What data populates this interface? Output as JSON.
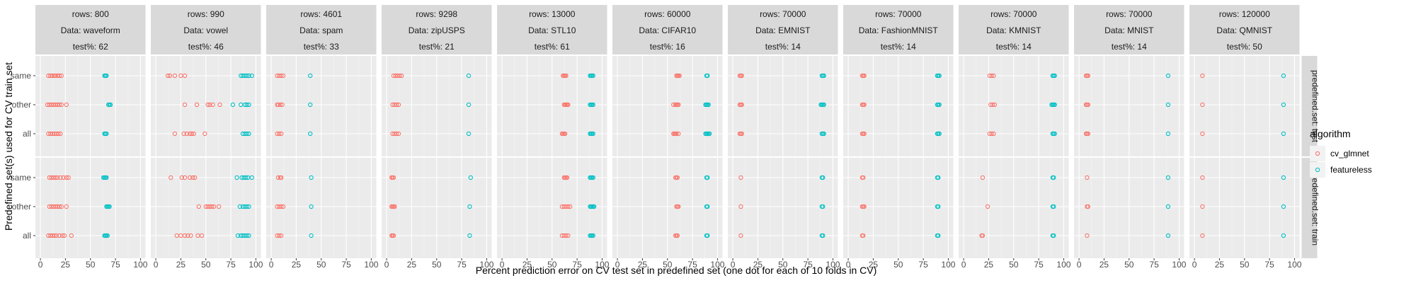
{
  "chart_data": {
    "type": "scatter",
    "title": "",
    "xlabel": "Percent prediction error on CV test set in predefined set (one dot for each of 10 folds in CV)",
    "ylabel": "Predefined set(s) used for CV train set",
    "xlim": [
      0,
      100
    ],
    "xticks": [
      0,
      25,
      50,
      75,
      100
    ],
    "xtick_labels": [
      "0",
      "25",
      "50",
      "75",
      "100"
    ],
    "y_categories": [
      "same",
      "other",
      "all"
    ],
    "grid": true,
    "legend": {
      "title": "algorithm",
      "position": "right",
      "entries": [
        {
          "name": "cv_glmnet",
          "color": "#F8766D"
        },
        {
          "name": "featureless",
          "color": "#00BFC4"
        }
      ]
    },
    "row_strips": [
      "predefined.set: test",
      "predefined.set: train"
    ],
    "panels": [
      {
        "rows": "rows: 800",
        "data": "Data: waveform",
        "test": "test%: 62",
        "points": {
          "test": {
            "same": {
              "cv_glmnet": [
                8,
                10,
                12,
                14,
                15,
                17,
                19,
                21
              ],
              "featureless": [
                64,
                65,
                66
              ]
            },
            "other": {
              "cv_glmnet": [
                7,
                9,
                11,
                13,
                15,
                17,
                19,
                21,
                26
              ],
              "featureless": [
                68,
                69,
                70
              ]
            },
            "all": {
              "cv_glmnet": [
                8,
                10,
                12,
                14,
                16,
                18,
                20
              ],
              "featureless": [
                64,
                65,
                66
              ]
            }
          },
          "train": {
            "same": {
              "cv_glmnet": [
                9,
                11,
                13,
                15,
                17,
                20,
                23,
                26,
                28
              ],
              "featureless": [
                63,
                64,
                65,
                66
              ]
            },
            "other": {
              "cv_glmnet": [
                9,
                11,
                13,
                15,
                17,
                19,
                21,
                26
              ],
              "featureless": [
                66,
                67,
                68,
                69
              ]
            },
            "all": {
              "cv_glmnet": [
                8,
                10,
                12,
                14,
                16,
                19,
                22,
                24,
                31
              ],
              "featureless": [
                64,
                65,
                66,
                67
              ]
            }
          }
        }
      },
      {
        "rows": "rows: 990",
        "data": "Data: vowel",
        "test": "test%: 46",
        "points": {
          "test": {
            "same": {
              "cv_glmnet": [
                12,
                14,
                19,
                25,
                29
              ],
              "featureless": [
                85,
                87,
                89,
                91,
                93,
                96
              ]
            },
            "other": {
              "cv_glmnet": [
                29,
                41,
                52,
                54,
                57,
                64
              ],
              "featureless": [
                77,
                85,
                89,
                91,
                93
              ]
            },
            "all": {
              "cv_glmnet": [
                19,
                28,
                31,
                34,
                36,
                38,
                49
              ],
              "featureless": [
                87,
                89,
                91,
                93
              ]
            }
          },
          "train": {
            "same": {
              "cv_glmnet": [
                15,
                26,
                29,
                34,
                37,
                39
              ],
              "featureless": [
                81,
                86,
                88,
                90,
                92,
                96
              ]
            },
            "other": {
              "cv_glmnet": [
                43,
                50,
                52,
                54,
                56,
                58,
                63
              ],
              "featureless": [
                84,
                87,
                89,
                91,
                93
              ]
            },
            "all": {
              "cv_glmnet": [
                21,
                25,
                29,
                32,
                35,
                42,
                46
              ],
              "featureless": [
                82,
                85,
                87,
                89,
                91,
                93
              ]
            }
          }
        }
      },
      {
        "rows": "rows: 4601",
        "data": "Data: spam",
        "test": "test%: 33",
        "points": {
          "test": {
            "same": {
              "cv_glmnet": [
                6,
                8,
                10,
                12
              ],
              "featureless": [
                39
              ]
            },
            "other": {
              "cv_glmnet": [
                6,
                7,
                9,
                11
              ],
              "featureless": [
                39
              ]
            },
            "all": {
              "cv_glmnet": [
                6,
                8,
                10
              ],
              "featureless": [
                39
              ]
            }
          },
          "train": {
            "same": {
              "cv_glmnet": [
                7,
                9,
                10
              ],
              "featureless": [
                40
              ]
            },
            "other": {
              "cv_glmnet": [
                6,
                8,
                10,
                12
              ],
              "featureless": [
                40
              ]
            },
            "all": {
              "cv_glmnet": [
                6,
                8,
                10
              ],
              "featureless": [
                40
              ]
            }
          }
        }
      },
      {
        "rows": "rows: 9298",
        "data": "Data: zipUSPS",
        "test": "test%: 21",
        "points": {
          "test": {
            "same": {
              "cv_glmnet": [
                7,
                9,
                11,
                13,
                15
              ],
              "featureless": [
                82
              ]
            },
            "other": {
              "cv_glmnet": [
                6,
                8,
                10,
                12
              ],
              "featureless": [
                82
              ]
            },
            "all": {
              "cv_glmnet": [
                6,
                8,
                10,
                12
              ],
              "featureless": [
                82
              ]
            }
          },
          "train": {
            "same": {
              "cv_glmnet": [
                5,
                6,
                7
              ],
              "featureless": [
                84
              ]
            },
            "other": {
              "cv_glmnet": [
                5,
                6,
                7,
                8
              ],
              "featureless": [
                83
              ]
            },
            "all": {
              "cv_glmnet": [
                5,
                6,
                7
              ],
              "featureless": [
                83
              ]
            }
          }
        }
      },
      {
        "rows": "rows: 13000",
        "data": "Data: STL10",
        "test": "test%: 61",
        "points": {
          "test": {
            "same": {
              "cv_glmnet": [
                61,
                62,
                63,
                64
              ],
              "featureless": [
                88,
                89,
                90,
                91
              ]
            },
            "other": {
              "cv_glmnet": [
                62,
                63,
                64,
                65,
                66
              ],
              "featureless": [
                88,
                89,
                90,
                91
              ]
            },
            "all": {
              "cv_glmnet": [
                60,
                61,
                62,
                63
              ],
              "featureless": [
                88,
                89,
                90,
                91
              ]
            }
          },
          "train": {
            "same": {
              "cv_glmnet": [
                62,
                63,
                64,
                65
              ],
              "featureless": [
                88,
                89,
                90,
                91
              ]
            },
            "other": {
              "cv_glmnet": [
                60,
                62,
                64,
                66,
                68
              ],
              "featureless": [
                88,
                89,
                90,
                91,
                92
              ]
            },
            "all": {
              "cv_glmnet": [
                60,
                62,
                64,
                66
              ],
              "featureless": [
                88,
                89,
                90,
                91
              ]
            }
          }
        }
      },
      {
        "rows": "rows: 60000",
        "data": "Data: CIFAR10",
        "test": "test%: 16",
        "points": {
          "test": {
            "same": {
              "cv_glmnet": [
                59,
                60,
                61,
                62
              ],
              "featureless": [
                89,
                90
              ]
            },
            "other": {
              "cv_glmnet": [
                56,
                58,
                59,
                60,
                61
              ],
              "featureless": [
                88,
                89,
                90,
                91
              ]
            },
            "all": {
              "cv_glmnet": [
                56,
                57,
                58,
                59,
                61
              ],
              "featureless": [
                88,
                89,
                90,
                91,
                92
              ]
            }
          },
          "train": {
            "same": {
              "cv_glmnet": [
                58,
                59,
                60
              ],
              "featureless": [
                89,
                90
              ]
            },
            "other": {
              "cv_glmnet": [
                59,
                60,
                61
              ],
              "featureless": [
                89,
                90
              ]
            },
            "all": {
              "cv_glmnet": [
                58,
                59,
                60
              ],
              "featureless": [
                89,
                90
              ]
            }
          }
        }
      },
      {
        "rows": "rows: 70000",
        "data": "Data: EMNIST",
        "test": "test%: 14",
        "points": {
          "test": {
            "same": {
              "cv_glmnet": [
                7,
                8,
                9
              ],
              "featureless": [
                89,
                90,
                91
              ]
            },
            "other": {
              "cv_glmnet": [
                7,
                8,
                9
              ],
              "featureless": [
                88,
                89,
                90,
                91
              ]
            },
            "all": {
              "cv_glmnet": [
                7,
                8,
                9
              ],
              "featureless": [
                89,
                90,
                91
              ]
            }
          },
          "train": {
            "same": {
              "cv_glmnet": [
                8
              ],
              "featureless": [
                89,
                90
              ]
            },
            "other": {
              "cv_glmnet": [
                8
              ],
              "featureless": [
                89,
                90
              ]
            },
            "all": {
              "cv_glmnet": [
                8
              ],
              "featureless": [
                89,
                90
              ]
            }
          }
        }
      },
      {
        "rows": "rows: 70000",
        "data": "Data: FashionMNIST",
        "test": "test%: 14",
        "points": {
          "test": {
            "same": {
              "cv_glmnet": [
                14,
                15,
                16
              ],
              "featureless": [
                89,
                90,
                91
              ]
            },
            "other": {
              "cv_glmnet": [
                14,
                15,
                16
              ],
              "featureless": [
                89,
                90,
                91
              ]
            },
            "all": {
              "cv_glmnet": [
                14,
                15,
                16
              ],
              "featureless": [
                89,
                90,
                91
              ]
            }
          },
          "train": {
            "same": {
              "cv_glmnet": [
                14,
                15
              ],
              "featureless": [
                89,
                90
              ]
            },
            "other": {
              "cv_glmnet": [
                14,
                15,
                16
              ],
              "featureless": [
                89,
                90
              ]
            },
            "all": {
              "cv_glmnet": [
                14,
                15
              ],
              "featureless": [
                89,
                90
              ]
            }
          }
        }
      },
      {
        "rows": "rows: 70000",
        "data": "Data: KMNIST",
        "test": "test%: 14",
        "points": {
          "test": {
            "same": {
              "cv_glmnet": [
                26,
                28,
                30
              ],
              "featureless": [
                89,
                90,
                91
              ]
            },
            "other": {
              "cv_glmnet": [
                27,
                29,
                31
              ],
              "featureless": [
                88,
                89,
                90,
                91
              ]
            },
            "all": {
              "cv_glmnet": [
                26,
                28,
                30
              ],
              "featureless": [
                89,
                90,
                91
              ]
            }
          },
          "train": {
            "same": {
              "cv_glmnet": [
                19
              ],
              "featureless": [
                89,
                90
              ]
            },
            "other": {
              "cv_glmnet": [
                24
              ],
              "featureless": [
                89,
                90
              ]
            },
            "all": {
              "cv_glmnet": [
                18,
                19
              ],
              "featureless": [
                89,
                90
              ]
            }
          }
        }
      },
      {
        "rows": "rows: 70000",
        "data": "Data: MNIST",
        "test": "test%: 14",
        "points": {
          "test": {
            "same": {
              "cv_glmnet": [
                7,
                8,
                9
              ],
              "featureless": [
                89
              ]
            },
            "other": {
              "cv_glmnet": [
                7,
                8,
                9
              ],
              "featureless": [
                89
              ]
            },
            "all": {
              "cv_glmnet": [
                7,
                8,
                9
              ],
              "featureless": [
                89
              ]
            }
          },
          "train": {
            "same": {
              "cv_glmnet": [
                8
              ],
              "featureless": [
                89
              ]
            },
            "other": {
              "cv_glmnet": [
                8,
                9
              ],
              "featureless": [
                89
              ]
            },
            "all": {
              "cv_glmnet": [
                8
              ],
              "featureless": [
                89
              ]
            }
          }
        }
      },
      {
        "rows": "rows: 120000",
        "data": "Data: QMNIST",
        "test": "test%: 50",
        "points": {
          "test": {
            "same": {
              "cv_glmnet": [
                8
              ],
              "featureless": [
                89
              ]
            },
            "other": {
              "cv_glmnet": [
                8
              ],
              "featureless": [
                89
              ]
            },
            "all": {
              "cv_glmnet": [
                8
              ],
              "featureless": [
                89
              ]
            }
          },
          "train": {
            "same": {
              "cv_glmnet": [
                8
              ],
              "featureless": [
                89
              ]
            },
            "other": {
              "cv_glmnet": [
                8
              ],
              "featureless": [
                89
              ]
            },
            "all": {
              "cv_glmnet": [
                8
              ],
              "featureless": [
                89
              ]
            }
          }
        }
      }
    ]
  }
}
